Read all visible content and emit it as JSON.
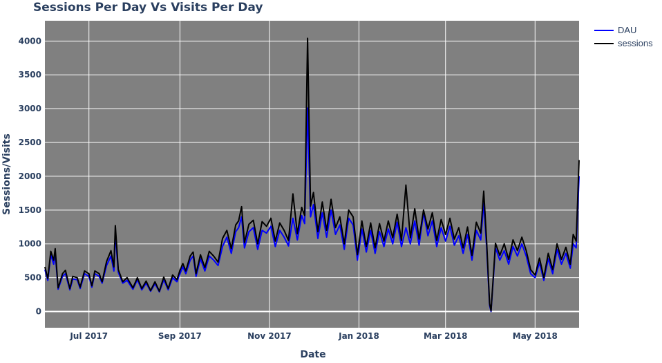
{
  "chart_data": {
    "type": "line",
    "title": "Sessions Per Day Vs Visits Per Day",
    "xlabel": "Date",
    "ylabel": "Sessions/Visits",
    "x_start": "2017-06-01",
    "x_end": "2018-05-31",
    "x_tick_labels": [
      "Jul 2017",
      "Sep 2017",
      "Nov 2017",
      "Jan 2018",
      "Mar 2018",
      "May 2018"
    ],
    "x_tick_dates": [
      "2017-07-01",
      "2017-09-01",
      "2017-11-01",
      "2018-01-01",
      "2018-03-01",
      "2018-05-01"
    ],
    "y_ticks": [
      0,
      500,
      1000,
      1500,
      2000,
      2500,
      3000,
      3500,
      4000
    ],
    "y_tick_labels": [
      "0",
      "500",
      "1000",
      "1500",
      "2000",
      "2500",
      "3000",
      "3500",
      "4000"
    ],
    "ylim": [
      -240,
      4300
    ],
    "grid": true,
    "legend_position": "top-right",
    "series": [
      {
        "name": "DAU",
        "color": "#0000ff",
        "points": [
          [
            "2017-06-01",
            620
          ],
          [
            "2017-06-03",
            460
          ],
          [
            "2017-06-05",
            840
          ],
          [
            "2017-06-07",
            700
          ],
          [
            "2017-06-08",
            860
          ],
          [
            "2017-06-10",
            330
          ],
          [
            "2017-06-13",
            520
          ],
          [
            "2017-06-15",
            560
          ],
          [
            "2017-06-18",
            320
          ],
          [
            "2017-06-20",
            480
          ],
          [
            "2017-06-23",
            470
          ],
          [
            "2017-06-25",
            340
          ],
          [
            "2017-06-28",
            560
          ],
          [
            "2017-07-01",
            520
          ],
          [
            "2017-07-03",
            360
          ],
          [
            "2017-07-05",
            560
          ],
          [
            "2017-07-08",
            520
          ],
          [
            "2017-07-10",
            420
          ],
          [
            "2017-07-13",
            680
          ],
          [
            "2017-07-16",
            820
          ],
          [
            "2017-07-18",
            600
          ],
          [
            "2017-07-19",
            1150
          ],
          [
            "2017-07-21",
            580
          ],
          [
            "2017-07-24",
            420
          ],
          [
            "2017-07-27",
            460
          ],
          [
            "2017-07-31",
            330
          ],
          [
            "2017-08-03",
            470
          ],
          [
            "2017-08-06",
            320
          ],
          [
            "2017-08-09",
            420
          ],
          [
            "2017-08-12",
            300
          ],
          [
            "2017-08-15",
            410
          ],
          [
            "2017-08-18",
            290
          ],
          [
            "2017-08-21",
            470
          ],
          [
            "2017-08-24",
            320
          ],
          [
            "2017-08-27",
            500
          ],
          [
            "2017-08-30",
            440
          ],
          [
            "2017-09-01",
            560
          ],
          [
            "2017-09-03",
            660
          ],
          [
            "2017-09-05",
            560
          ],
          [
            "2017-09-08",
            760
          ],
          [
            "2017-09-10",
            820
          ],
          [
            "2017-09-12",
            520
          ],
          [
            "2017-09-15",
            780
          ],
          [
            "2017-09-18",
            600
          ],
          [
            "2017-09-21",
            820
          ],
          [
            "2017-09-24",
            760
          ],
          [
            "2017-09-27",
            680
          ],
          [
            "2017-09-30",
            960
          ],
          [
            "2017-10-03",
            1100
          ],
          [
            "2017-10-06",
            860
          ],
          [
            "2017-10-09",
            1180
          ],
          [
            "2017-10-11",
            1240
          ],
          [
            "2017-10-13",
            1400
          ],
          [
            "2017-10-15",
            940
          ],
          [
            "2017-10-18",
            1180
          ],
          [
            "2017-10-21",
            1240
          ],
          [
            "2017-10-24",
            920
          ],
          [
            "2017-10-27",
            1200
          ],
          [
            "2017-10-30",
            1160
          ],
          [
            "2017-11-02",
            1260
          ],
          [
            "2017-11-05",
            960
          ],
          [
            "2017-11-08",
            1200
          ],
          [
            "2017-11-11",
            1100
          ],
          [
            "2017-11-14",
            970
          ],
          [
            "2017-11-17",
            1380
          ],
          [
            "2017-11-20",
            1060
          ],
          [
            "2017-11-23",
            1420
          ],
          [
            "2017-11-25",
            1300
          ],
          [
            "2017-11-27",
            3010
          ],
          [
            "2017-11-29",
            1400
          ],
          [
            "2017-12-01",
            1580
          ],
          [
            "2017-12-04",
            1080
          ],
          [
            "2017-12-07",
            1460
          ],
          [
            "2017-12-10",
            1100
          ],
          [
            "2017-12-13",
            1500
          ],
          [
            "2017-12-16",
            1140
          ],
          [
            "2017-12-19",
            1280
          ],
          [
            "2017-12-22",
            920
          ],
          [
            "2017-12-25",
            1380
          ],
          [
            "2017-12-28",
            1280
          ],
          [
            "2017-12-31",
            760
          ],
          [
            "2018-01-03",
            1220
          ],
          [
            "2018-01-06",
            880
          ],
          [
            "2018-01-09",
            1200
          ],
          [
            "2018-01-12",
            860
          ],
          [
            "2018-01-15",
            1180
          ],
          [
            "2018-01-18",
            960
          ],
          [
            "2018-01-21",
            1220
          ],
          [
            "2018-01-24",
            1000
          ],
          [
            "2018-01-27",
            1320
          ],
          [
            "2018-01-30",
            960
          ],
          [
            "2018-02-02",
            1240
          ],
          [
            "2018-02-05",
            1000
          ],
          [
            "2018-02-08",
            1340
          ],
          [
            "2018-02-11",
            980
          ],
          [
            "2018-02-14",
            1460
          ],
          [
            "2018-02-17",
            1120
          ],
          [
            "2018-02-20",
            1340
          ],
          [
            "2018-02-23",
            960
          ],
          [
            "2018-02-26",
            1240
          ],
          [
            "2018-03-01",
            1040
          ],
          [
            "2018-03-04",
            1260
          ],
          [
            "2018-03-07",
            980
          ],
          [
            "2018-03-10",
            1120
          ],
          [
            "2018-03-13",
            860
          ],
          [
            "2018-03-16",
            1140
          ],
          [
            "2018-03-19",
            760
          ],
          [
            "2018-03-22",
            1200
          ],
          [
            "2018-03-25",
            1060
          ],
          [
            "2018-03-27",
            1600
          ],
          [
            "2018-03-29",
            950
          ],
          [
            "2018-03-31",
            90
          ],
          [
            "2018-04-01",
            0
          ],
          [
            "2018-04-04",
            940
          ],
          [
            "2018-04-07",
            760
          ],
          [
            "2018-04-10",
            900
          ],
          [
            "2018-04-13",
            700
          ],
          [
            "2018-04-16",
            960
          ],
          [
            "2018-04-19",
            820
          ],
          [
            "2018-04-22",
            1000
          ],
          [
            "2018-04-25",
            820
          ],
          [
            "2018-04-28",
            560
          ],
          [
            "2018-05-01",
            500
          ],
          [
            "2018-05-04",
            720
          ],
          [
            "2018-05-07",
            460
          ],
          [
            "2018-05-10",
            780
          ],
          [
            "2018-05-13",
            560
          ],
          [
            "2018-05-16",
            920
          ],
          [
            "2018-05-19",
            700
          ],
          [
            "2018-05-22",
            860
          ],
          [
            "2018-05-25",
            640
          ],
          [
            "2018-05-27",
            1000
          ],
          [
            "2018-05-29",
            940
          ],
          [
            "2018-05-31",
            2000
          ]
        ]
      },
      {
        "name": "sessions",
        "color": "#000000",
        "points": [
          [
            "2017-06-01",
            660
          ],
          [
            "2017-06-03",
            490
          ],
          [
            "2017-06-05",
            890
          ],
          [
            "2017-06-07",
            760
          ],
          [
            "2017-06-08",
            930
          ],
          [
            "2017-06-10",
            350
          ],
          [
            "2017-06-13",
            560
          ],
          [
            "2017-06-15",
            610
          ],
          [
            "2017-06-18",
            340
          ],
          [
            "2017-06-20",
            520
          ],
          [
            "2017-06-23",
            500
          ],
          [
            "2017-06-25",
            360
          ],
          [
            "2017-06-28",
            600
          ],
          [
            "2017-07-01",
            560
          ],
          [
            "2017-07-03",
            380
          ],
          [
            "2017-07-05",
            600
          ],
          [
            "2017-07-08",
            560
          ],
          [
            "2017-07-10",
            440
          ],
          [
            "2017-07-13",
            740
          ],
          [
            "2017-07-16",
            900
          ],
          [
            "2017-07-18",
            660
          ],
          [
            "2017-07-19",
            1270
          ],
          [
            "2017-07-21",
            620
          ],
          [
            "2017-07-24",
            440
          ],
          [
            "2017-07-27",
            500
          ],
          [
            "2017-07-31",
            350
          ],
          [
            "2017-08-03",
            500
          ],
          [
            "2017-08-06",
            340
          ],
          [
            "2017-08-09",
            450
          ],
          [
            "2017-08-12",
            310
          ],
          [
            "2017-08-15",
            440
          ],
          [
            "2017-08-18",
            300
          ],
          [
            "2017-08-21",
            510
          ],
          [
            "2017-08-24",
            340
          ],
          [
            "2017-08-27",
            540
          ],
          [
            "2017-08-30",
            470
          ],
          [
            "2017-09-01",
            610
          ],
          [
            "2017-09-03",
            710
          ],
          [
            "2017-09-05",
            600
          ],
          [
            "2017-09-08",
            820
          ],
          [
            "2017-09-10",
            880
          ],
          [
            "2017-09-12",
            560
          ],
          [
            "2017-09-15",
            840
          ],
          [
            "2017-09-18",
            650
          ],
          [
            "2017-09-21",
            890
          ],
          [
            "2017-09-24",
            820
          ],
          [
            "2017-09-27",
            730
          ],
          [
            "2017-09-30",
            1080
          ],
          [
            "2017-10-03",
            1200
          ],
          [
            "2017-10-06",
            930
          ],
          [
            "2017-10-09",
            1280
          ],
          [
            "2017-10-11",
            1340
          ],
          [
            "2017-10-13",
            1550
          ],
          [
            "2017-10-15",
            1020
          ],
          [
            "2017-10-18",
            1290
          ],
          [
            "2017-10-21",
            1350
          ],
          [
            "2017-10-24",
            1000
          ],
          [
            "2017-10-27",
            1330
          ],
          [
            "2017-10-30",
            1260
          ],
          [
            "2017-11-02",
            1380
          ],
          [
            "2017-11-05",
            1040
          ],
          [
            "2017-11-08",
            1310
          ],
          [
            "2017-11-11",
            1200
          ],
          [
            "2017-11-14",
            1050
          ],
          [
            "2017-11-17",
            1740
          ],
          [
            "2017-11-20",
            1150
          ],
          [
            "2017-11-23",
            1540
          ],
          [
            "2017-11-25",
            1420
          ],
          [
            "2017-11-27",
            4040
          ],
          [
            "2017-11-29",
            1560
          ],
          [
            "2017-12-01",
            1760
          ],
          [
            "2017-12-04",
            1180
          ],
          [
            "2017-12-07",
            1620
          ],
          [
            "2017-12-10",
            1200
          ],
          [
            "2017-12-13",
            1660
          ],
          [
            "2017-12-16",
            1240
          ],
          [
            "2017-12-19",
            1400
          ],
          [
            "2017-12-22",
            1000
          ],
          [
            "2017-12-25",
            1500
          ],
          [
            "2017-12-28",
            1400
          ],
          [
            "2017-12-31",
            840
          ],
          [
            "2018-01-03",
            1340
          ],
          [
            "2018-01-06",
            960
          ],
          [
            "2018-01-09",
            1310
          ],
          [
            "2018-01-12",
            940
          ],
          [
            "2018-01-15",
            1300
          ],
          [
            "2018-01-18",
            1040
          ],
          [
            "2018-01-21",
            1340
          ],
          [
            "2018-01-24",
            1090
          ],
          [
            "2018-01-27",
            1440
          ],
          [
            "2018-01-30",
            1050
          ],
          [
            "2018-02-02",
            1870
          ],
          [
            "2018-02-05",
            1090
          ],
          [
            "2018-02-08",
            1520
          ],
          [
            "2018-02-11",
            1070
          ],
          [
            "2018-02-14",
            1500
          ],
          [
            "2018-02-17",
            1220
          ],
          [
            "2018-02-20",
            1460
          ],
          [
            "2018-02-23",
            1050
          ],
          [
            "2018-02-26",
            1360
          ],
          [
            "2018-03-01",
            1140
          ],
          [
            "2018-03-04",
            1380
          ],
          [
            "2018-03-07",
            1070
          ],
          [
            "2018-03-10",
            1240
          ],
          [
            "2018-03-13",
            940
          ],
          [
            "2018-03-16",
            1250
          ],
          [
            "2018-03-19",
            830
          ],
          [
            "2018-03-22",
            1320
          ],
          [
            "2018-03-25",
            1160
          ],
          [
            "2018-03-27",
            1780
          ],
          [
            "2018-03-29",
            1040
          ],
          [
            "2018-03-31",
            120
          ],
          [
            "2018-04-01",
            10
          ],
          [
            "2018-04-04",
            1010
          ],
          [
            "2018-04-07",
            830
          ],
          [
            "2018-04-10",
            1000
          ],
          [
            "2018-04-13",
            770
          ],
          [
            "2018-04-16",
            1060
          ],
          [
            "2018-04-19",
            900
          ],
          [
            "2018-04-22",
            1100
          ],
          [
            "2018-04-25",
            900
          ],
          [
            "2018-04-28",
            620
          ],
          [
            "2018-05-01",
            540
          ],
          [
            "2018-05-04",
            790
          ],
          [
            "2018-05-07",
            500
          ],
          [
            "2018-05-10",
            860
          ],
          [
            "2018-05-13",
            620
          ],
          [
            "2018-05-16",
            1000
          ],
          [
            "2018-05-19",
            770
          ],
          [
            "2018-05-22",
            950
          ],
          [
            "2018-05-25",
            700
          ],
          [
            "2018-05-27",
            1140
          ],
          [
            "2018-05-29",
            1040
          ],
          [
            "2018-05-31",
            2240
          ]
        ]
      }
    ]
  },
  "colors": {
    "plot_background": "#808080",
    "grid": "#ffffff",
    "text": "#2a3f5f"
  }
}
